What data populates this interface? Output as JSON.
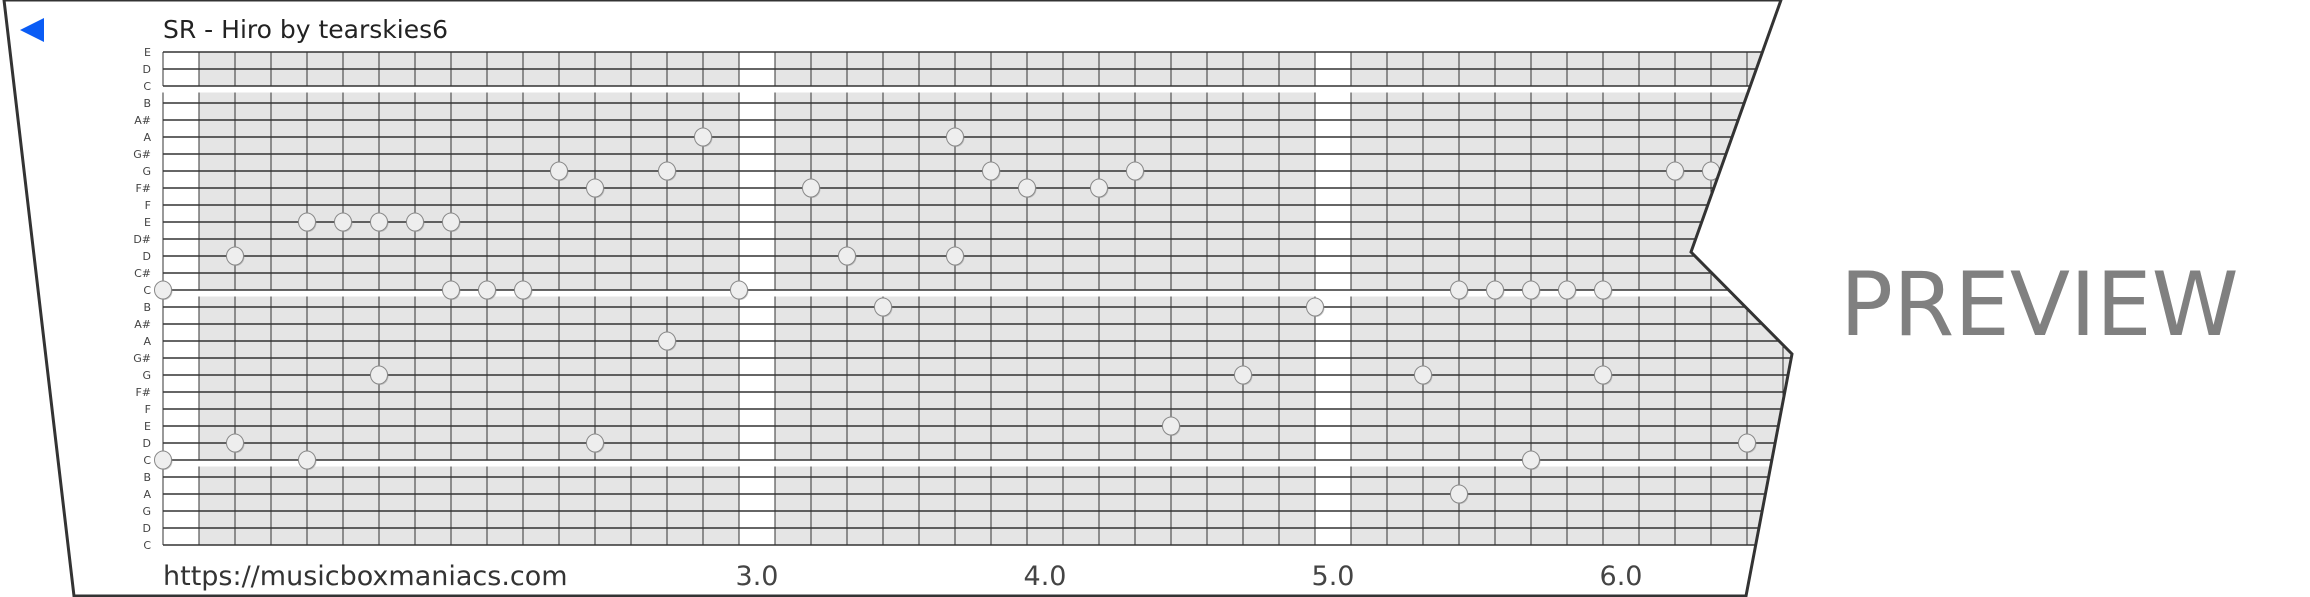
{
  "header": {
    "title": "SR - Hiro by tearskies6",
    "back_icon": "back-triangle-icon",
    "back_color": "#0a5cf5"
  },
  "footer": {
    "url": "https://musicboxmaniacs.com",
    "beat_labels": [
      {
        "step": 16,
        "label": "3.0"
      },
      {
        "step": 24,
        "label": "4.0"
      },
      {
        "step": 32,
        "label": "5.0"
      },
      {
        "step": 40,
        "label": "6.0"
      }
    ]
  },
  "watermark": "PREVIEW",
  "strip": {
    "rows": [
      "E",
      "D",
      "C",
      "B",
      "A#",
      "A",
      "G#",
      "G",
      "F#",
      "F",
      "E",
      "D#",
      "D",
      "C#",
      "C",
      "B",
      "A#",
      "A",
      "G#",
      "G",
      "F#",
      "F",
      "E",
      "D",
      "C",
      "B",
      "A",
      "G",
      "D",
      "C"
    ],
    "measure_steps": [
      0,
      16,
      32
    ],
    "colors": {
      "grid_fill": "#e5e5e5",
      "line": "#333333",
      "note_fill": "#eeeeee",
      "note_stroke": "#888888"
    }
  },
  "notes": [
    {
      "step": 0,
      "row": 14
    },
    {
      "step": 2,
      "row": 12
    },
    {
      "step": 4,
      "row": 10
    },
    {
      "step": 5,
      "row": 10
    },
    {
      "step": 6,
      "row": 10
    },
    {
      "step": 7,
      "row": 10
    },
    {
      "step": 8,
      "row": 10
    },
    {
      "step": 8,
      "row": 14
    },
    {
      "step": 9,
      "row": 14
    },
    {
      "step": 10,
      "row": 14
    },
    {
      "step": 11,
      "row": 7
    },
    {
      "step": 12,
      "row": 8
    },
    {
      "step": 14,
      "row": 7
    },
    {
      "step": 15,
      "row": 5
    },
    {
      "step": 16,
      "row": 14
    },
    {
      "step": 18,
      "row": 8
    },
    {
      "step": 19,
      "row": 12
    },
    {
      "step": 20,
      "row": 15
    },
    {
      "step": 22,
      "row": 5
    },
    {
      "step": 22,
      "row": 12
    },
    {
      "step": 23,
      "row": 7
    },
    {
      "step": 24,
      "row": 8
    },
    {
      "step": 26,
      "row": 8
    },
    {
      "step": 27,
      "row": 7
    },
    {
      "step": 32,
      "row": 15
    },
    {
      "step": 36,
      "row": 14
    },
    {
      "step": 37,
      "row": 14
    },
    {
      "step": 38,
      "row": 14
    },
    {
      "step": 39,
      "row": 14
    },
    {
      "step": 40,
      "row": 14
    },
    {
      "step": 42,
      "row": 7
    },
    {
      "step": 43,
      "row": 7
    },
    {
      "step": 14,
      "row": 17
    },
    {
      "step": 6,
      "row": 19
    },
    {
      "step": 30,
      "row": 19
    },
    {
      "step": 35,
      "row": 19
    },
    {
      "step": 40,
      "row": 19
    },
    {
      "step": 2,
      "row": 23
    },
    {
      "step": 12,
      "row": 23
    },
    {
      "step": 44,
      "row": 23
    },
    {
      "step": 28,
      "row": 22
    },
    {
      "step": 0,
      "row": 24
    },
    {
      "step": 4,
      "row": 24
    },
    {
      "step": 38,
      "row": 24
    },
    {
      "step": 36,
      "row": 26
    }
  ]
}
